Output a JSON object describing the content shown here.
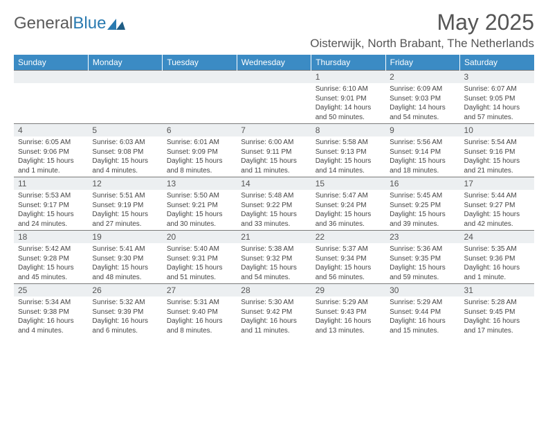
{
  "brand": {
    "name_left": "General",
    "name_right": "Blue"
  },
  "title": "May 2025",
  "location": "Oisterwijk, North Brabant, The Netherlands",
  "colors": {
    "header_bg": "#3b8bc4",
    "header_text": "#ffffff",
    "daynum_bg": "#eceff1",
    "border": "#7a7a7a",
    "text": "#444444",
    "title": "#555555"
  },
  "day_headers": [
    "Sunday",
    "Monday",
    "Tuesday",
    "Wednesday",
    "Thursday",
    "Friday",
    "Saturday"
  ],
  "weeks": [
    [
      null,
      null,
      null,
      null,
      {
        "n": "1",
        "sr": "6:10 AM",
        "ss": "9:01 PM",
        "dl": "14 hours and 50 minutes."
      },
      {
        "n": "2",
        "sr": "6:09 AM",
        "ss": "9:03 PM",
        "dl": "14 hours and 54 minutes."
      },
      {
        "n": "3",
        "sr": "6:07 AM",
        "ss": "9:05 PM",
        "dl": "14 hours and 57 minutes."
      }
    ],
    [
      {
        "n": "4",
        "sr": "6:05 AM",
        "ss": "9:06 PM",
        "dl": "15 hours and 1 minute."
      },
      {
        "n": "5",
        "sr": "6:03 AM",
        "ss": "9:08 PM",
        "dl": "15 hours and 4 minutes."
      },
      {
        "n": "6",
        "sr": "6:01 AM",
        "ss": "9:09 PM",
        "dl": "15 hours and 8 minutes."
      },
      {
        "n": "7",
        "sr": "6:00 AM",
        "ss": "9:11 PM",
        "dl": "15 hours and 11 minutes."
      },
      {
        "n": "8",
        "sr": "5:58 AM",
        "ss": "9:13 PM",
        "dl": "15 hours and 14 minutes."
      },
      {
        "n": "9",
        "sr": "5:56 AM",
        "ss": "9:14 PM",
        "dl": "15 hours and 18 minutes."
      },
      {
        "n": "10",
        "sr": "5:54 AM",
        "ss": "9:16 PM",
        "dl": "15 hours and 21 minutes."
      }
    ],
    [
      {
        "n": "11",
        "sr": "5:53 AM",
        "ss": "9:17 PM",
        "dl": "15 hours and 24 minutes."
      },
      {
        "n": "12",
        "sr": "5:51 AM",
        "ss": "9:19 PM",
        "dl": "15 hours and 27 minutes."
      },
      {
        "n": "13",
        "sr": "5:50 AM",
        "ss": "9:21 PM",
        "dl": "15 hours and 30 minutes."
      },
      {
        "n": "14",
        "sr": "5:48 AM",
        "ss": "9:22 PM",
        "dl": "15 hours and 33 minutes."
      },
      {
        "n": "15",
        "sr": "5:47 AM",
        "ss": "9:24 PM",
        "dl": "15 hours and 36 minutes."
      },
      {
        "n": "16",
        "sr": "5:45 AM",
        "ss": "9:25 PM",
        "dl": "15 hours and 39 minutes."
      },
      {
        "n": "17",
        "sr": "5:44 AM",
        "ss": "9:27 PM",
        "dl": "15 hours and 42 minutes."
      }
    ],
    [
      {
        "n": "18",
        "sr": "5:42 AM",
        "ss": "9:28 PM",
        "dl": "15 hours and 45 minutes."
      },
      {
        "n": "19",
        "sr": "5:41 AM",
        "ss": "9:30 PM",
        "dl": "15 hours and 48 minutes."
      },
      {
        "n": "20",
        "sr": "5:40 AM",
        "ss": "9:31 PM",
        "dl": "15 hours and 51 minutes."
      },
      {
        "n": "21",
        "sr": "5:38 AM",
        "ss": "9:32 PM",
        "dl": "15 hours and 54 minutes."
      },
      {
        "n": "22",
        "sr": "5:37 AM",
        "ss": "9:34 PM",
        "dl": "15 hours and 56 minutes."
      },
      {
        "n": "23",
        "sr": "5:36 AM",
        "ss": "9:35 PM",
        "dl": "15 hours and 59 minutes."
      },
      {
        "n": "24",
        "sr": "5:35 AM",
        "ss": "9:36 PM",
        "dl": "16 hours and 1 minute."
      }
    ],
    [
      {
        "n": "25",
        "sr": "5:34 AM",
        "ss": "9:38 PM",
        "dl": "16 hours and 4 minutes."
      },
      {
        "n": "26",
        "sr": "5:32 AM",
        "ss": "9:39 PM",
        "dl": "16 hours and 6 minutes."
      },
      {
        "n": "27",
        "sr": "5:31 AM",
        "ss": "9:40 PM",
        "dl": "16 hours and 8 minutes."
      },
      {
        "n": "28",
        "sr": "5:30 AM",
        "ss": "9:42 PM",
        "dl": "16 hours and 11 minutes."
      },
      {
        "n": "29",
        "sr": "5:29 AM",
        "ss": "9:43 PM",
        "dl": "16 hours and 13 minutes."
      },
      {
        "n": "30",
        "sr": "5:29 AM",
        "ss": "9:44 PM",
        "dl": "16 hours and 15 minutes."
      },
      {
        "n": "31",
        "sr": "5:28 AM",
        "ss": "9:45 PM",
        "dl": "16 hours and 17 minutes."
      }
    ]
  ],
  "labels": {
    "sunrise": "Sunrise:",
    "sunset": "Sunset:",
    "daylight": "Daylight:"
  }
}
